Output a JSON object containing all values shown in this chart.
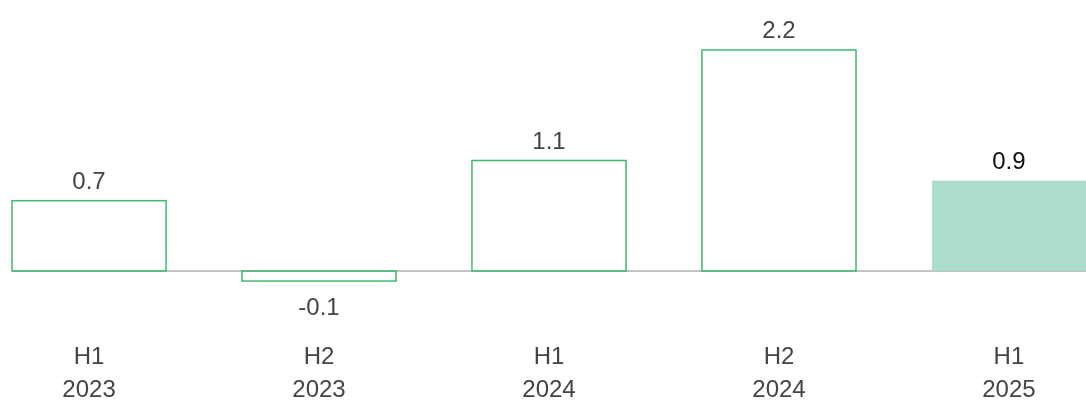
{
  "chart_data": {
    "type": "bar",
    "categories": [
      "H1\n2023",
      "H2\n2023",
      "H1\n2024",
      "H2\n2024",
      "H1\n2025"
    ],
    "values": [
      0.7,
      -0.1,
      1.1,
      2.2,
      0.9
    ],
    "colors": [
      "#3dba6c",
      "#3dba6c",
      "#3dba6c",
      "#3dba6c",
      "#acdccb"
    ],
    "data_labels": true
  }
}
